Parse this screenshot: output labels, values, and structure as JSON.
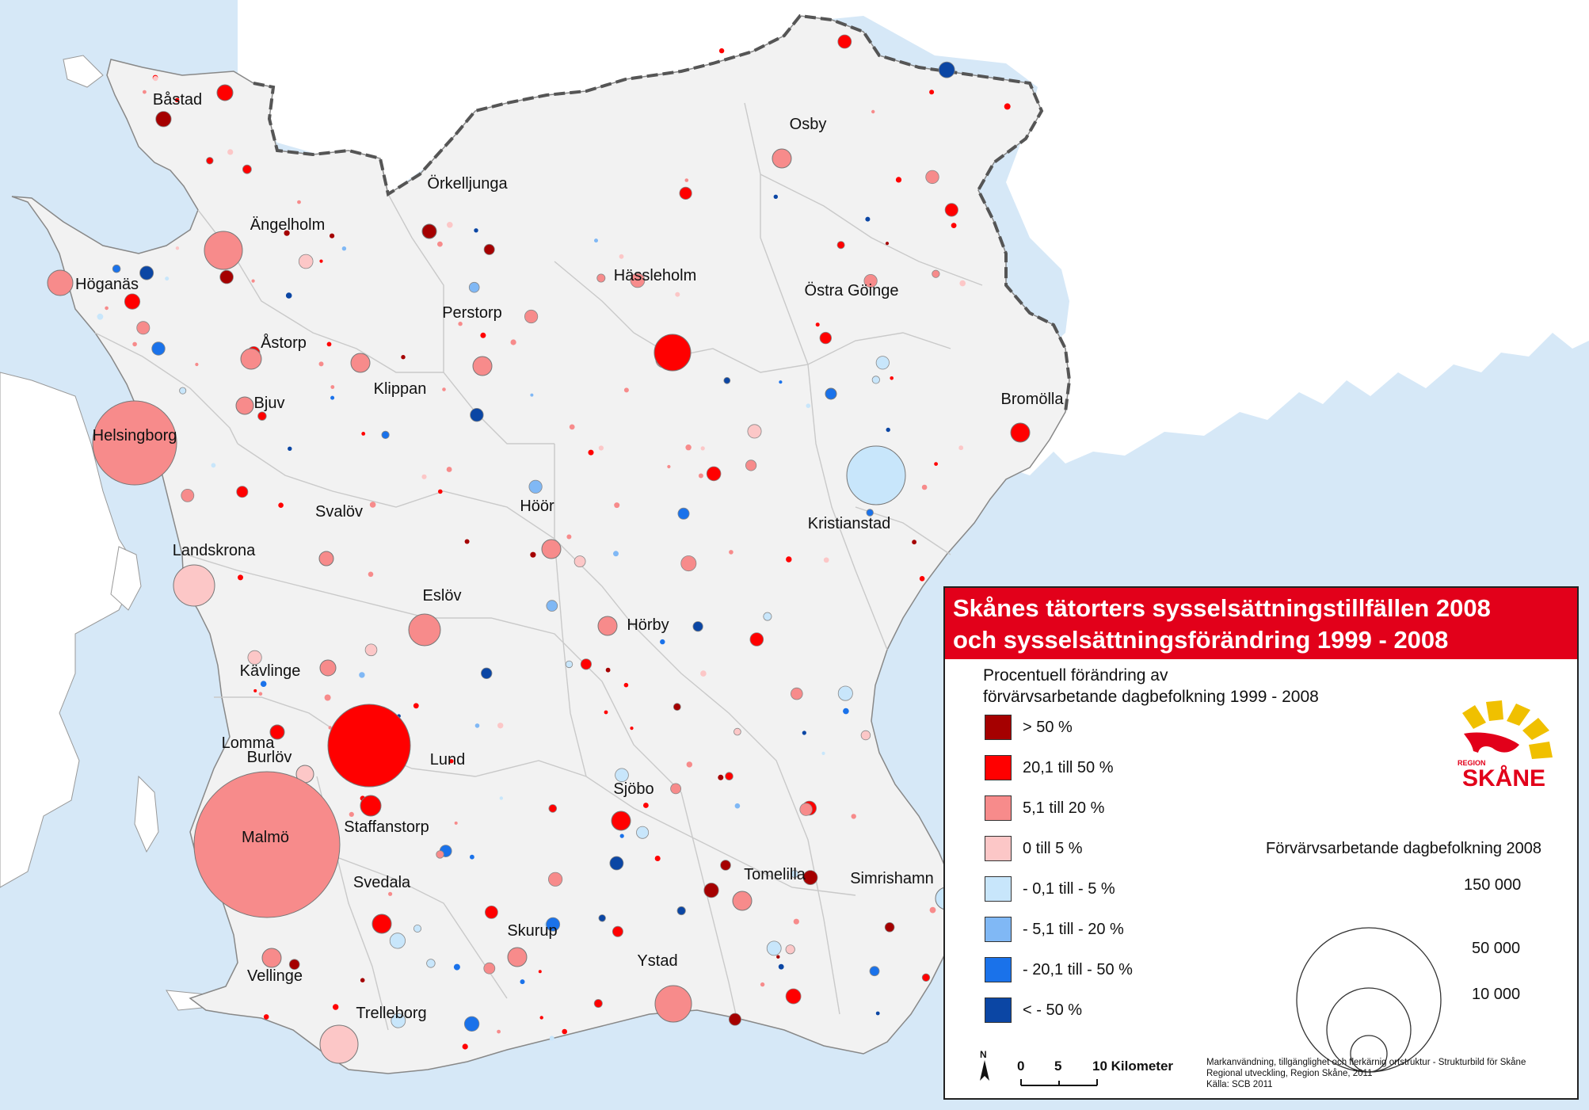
{
  "colors": {
    "sea": "#d6e8f7",
    "land": "#f2f2f2",
    "outer_land": "#ffffff",
    "border": "#555555",
    "class_fill": [
      "#a50000",
      "#ff0000",
      "#f78b8b",
      "#fcc7c7",
      "#c8e6fb",
      "#80b8f5",
      "#1a72ea",
      "#0b46a4"
    ]
  },
  "legend": {
    "title_line1": "Skånes tätorters sysselsättningstillfällen 2008",
    "title_line2": "och sysselsättningsförändring 1999 - 2008",
    "subtitle_line1": "Procentuell förändring av",
    "subtitle_line2": "förvärvsarbetande dagbefolkning 1999 - 2008",
    "classes": [
      {
        "label": "> 50 %",
        "color": "#a50000"
      },
      {
        "label": "20,1 till 50 %",
        "color": "#ff0000"
      },
      {
        "label": "5,1 till 20 %",
        "color": "#f78b8b"
      },
      {
        "label": "0 till 5 %",
        "color": "#fcc7c7"
      },
      {
        "label": "- 0,1 till - 5 %",
        "color": "#c8e6fb"
      },
      {
        "label": "- 5,1 till - 20 %",
        "color": "#80b8f5"
      },
      {
        "label": "- 20,1 till - 50 %",
        "color": "#1a72ea"
      },
      {
        "label": "< - 50 %",
        "color": "#0b46a4"
      }
    ],
    "size_title": "Förvärvsarbetande dagbefolkning 2008",
    "size_classes": [
      "150 000",
      "50 000",
      "10 000"
    ]
  },
  "logo": {
    "line1": "REGION",
    "line2": "SKÅNE"
  },
  "scale_bar": {
    "north": "N",
    "ticks": [
      "0",
      "5",
      "10 Kilometer"
    ]
  },
  "credits": {
    "line1": "Markanvändning, tillgänglighet och flerkärnig ortstruktur - Strukturbild för Skåne",
    "line2": "Regional utveckling, Region Skåne, 2011",
    "line3": "Källa: SCB 2011"
  },
  "places": [
    {
      "name": "Båstad",
      "change_class": 1
    },
    {
      "name": "Örkelljunga",
      "change_class": 0
    },
    {
      "name": "Osby",
      "change_class": 2
    },
    {
      "name": "Ängelholm",
      "change_class": 2
    },
    {
      "name": "Höganäs",
      "change_class": 2
    },
    {
      "name": "Hässleholm",
      "change_class": 1
    },
    {
      "name": "Perstorp",
      "change_class": 2
    },
    {
      "name": "Östra Göinge",
      "change_class": 6
    },
    {
      "name": "Åstorp",
      "change_class": 2
    },
    {
      "name": "Klippan",
      "change_class": 2
    },
    {
      "name": "Bjuv",
      "change_class": 2
    },
    {
      "name": "Bromölla",
      "change_class": 1
    },
    {
      "name": "Helsingborg",
      "change_class": 2
    },
    {
      "name": "Svalöv",
      "change_class": 2
    },
    {
      "name": "Höör",
      "change_class": 2
    },
    {
      "name": "Kristianstad",
      "change_class": 4
    },
    {
      "name": "Landskrona",
      "change_class": 3
    },
    {
      "name": "Eslöv",
      "change_class": 2
    },
    {
      "name": "Hörby",
      "change_class": 2
    },
    {
      "name": "Kävlinge",
      "change_class": 2
    },
    {
      "name": "Lomma",
      "change_class": 1
    },
    {
      "name": "Burlöv",
      "change_class": 3
    },
    {
      "name": "Lund",
      "change_class": 1
    },
    {
      "name": "Sjöbo",
      "change_class": 1
    },
    {
      "name": "Staffanstorp",
      "change_class": 1
    },
    {
      "name": "Malmö",
      "change_class": 2
    },
    {
      "name": "Svedala",
      "change_class": 1
    },
    {
      "name": "Tomelilla",
      "change_class": 2
    },
    {
      "name": "Simrishamn",
      "change_class": 4
    },
    {
      "name": "Skurup",
      "change_class": 2
    },
    {
      "name": "Ystad",
      "change_class": 2
    },
    {
      "name": "Vellinge",
      "change_class": 2
    },
    {
      "name": "Trelleborg",
      "change_class": 3
    }
  ]
}
